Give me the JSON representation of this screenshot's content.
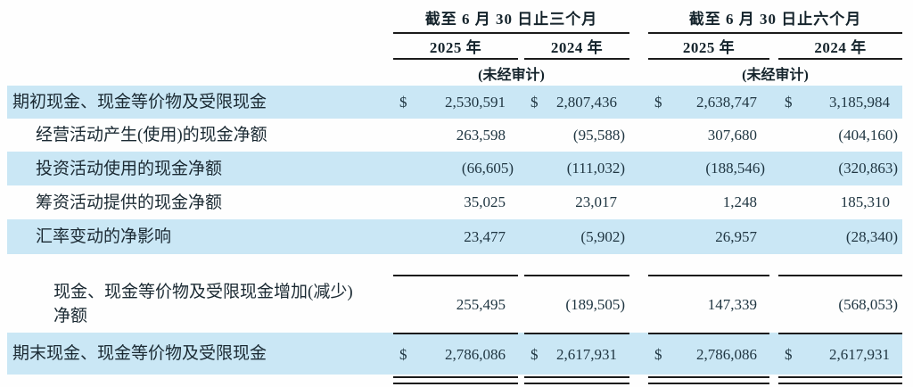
{
  "document": {
    "type": "cash-flow-summary-table",
    "unaudited_note": "(未经审计)"
  },
  "table": {
    "col_groups": [
      {
        "title": "截至 6 月 30 日止三个月",
        "years": [
          "2025 年",
          "2024 年"
        ],
        "unaudited": "(未经审计)"
      },
      {
        "title": "截至 6 月 30 日止六个月",
        "years": [
          "2025 年",
          "2024 年"
        ],
        "unaudited": "(未经审计)"
      }
    ],
    "rows": [
      {
        "label": "期初现金、现金等价物及受限现金",
        "indent": 0,
        "highlight": true,
        "currency": "$",
        "values": [
          "2,530,591",
          "2,807,436",
          "2,638,747",
          "3,185,984"
        ]
      },
      {
        "label": "经营活动产生(使用)的现金净额",
        "indent": 1,
        "highlight": false,
        "values": [
          "263,598",
          "(95,588)",
          "307,680",
          "(404,160)"
        ]
      },
      {
        "label": "投资活动使用的现金净额",
        "indent": 1,
        "highlight": true,
        "values": [
          "(66,605)",
          "(111,032)",
          "(188,546)",
          "(320,863)"
        ]
      },
      {
        "label": "筹资活动提供的现金净额",
        "indent": 1,
        "highlight": false,
        "values": [
          "35,025",
          "23,017",
          "1,248",
          "185,310"
        ]
      },
      {
        "label": "汇率变动的净影响",
        "indent": 1,
        "highlight": true,
        "values": [
          "23,477",
          "(5,902)",
          "26,957",
          "(28,340)"
        ]
      },
      {
        "label": "现金、现金等价物及受限现金增加(减少)净额",
        "indent": 2,
        "highlight": false,
        "values": [
          "255,495",
          "(189,505)",
          "147,339",
          "(568,053)"
        ]
      },
      {
        "label": "期末现金、现金等价物及受限现金",
        "indent": 0,
        "highlight": true,
        "currency": "$",
        "values": [
          "2,786,086",
          "2,617,931",
          "2,786,086",
          "2,617,931"
        ]
      }
    ]
  },
  "colors": {
    "highlight_row": "#cae7f5",
    "text": "#1b2a33",
    "number_text": "#203642",
    "rule_line": "#1b1b1b",
    "background": "#fefefe"
  }
}
